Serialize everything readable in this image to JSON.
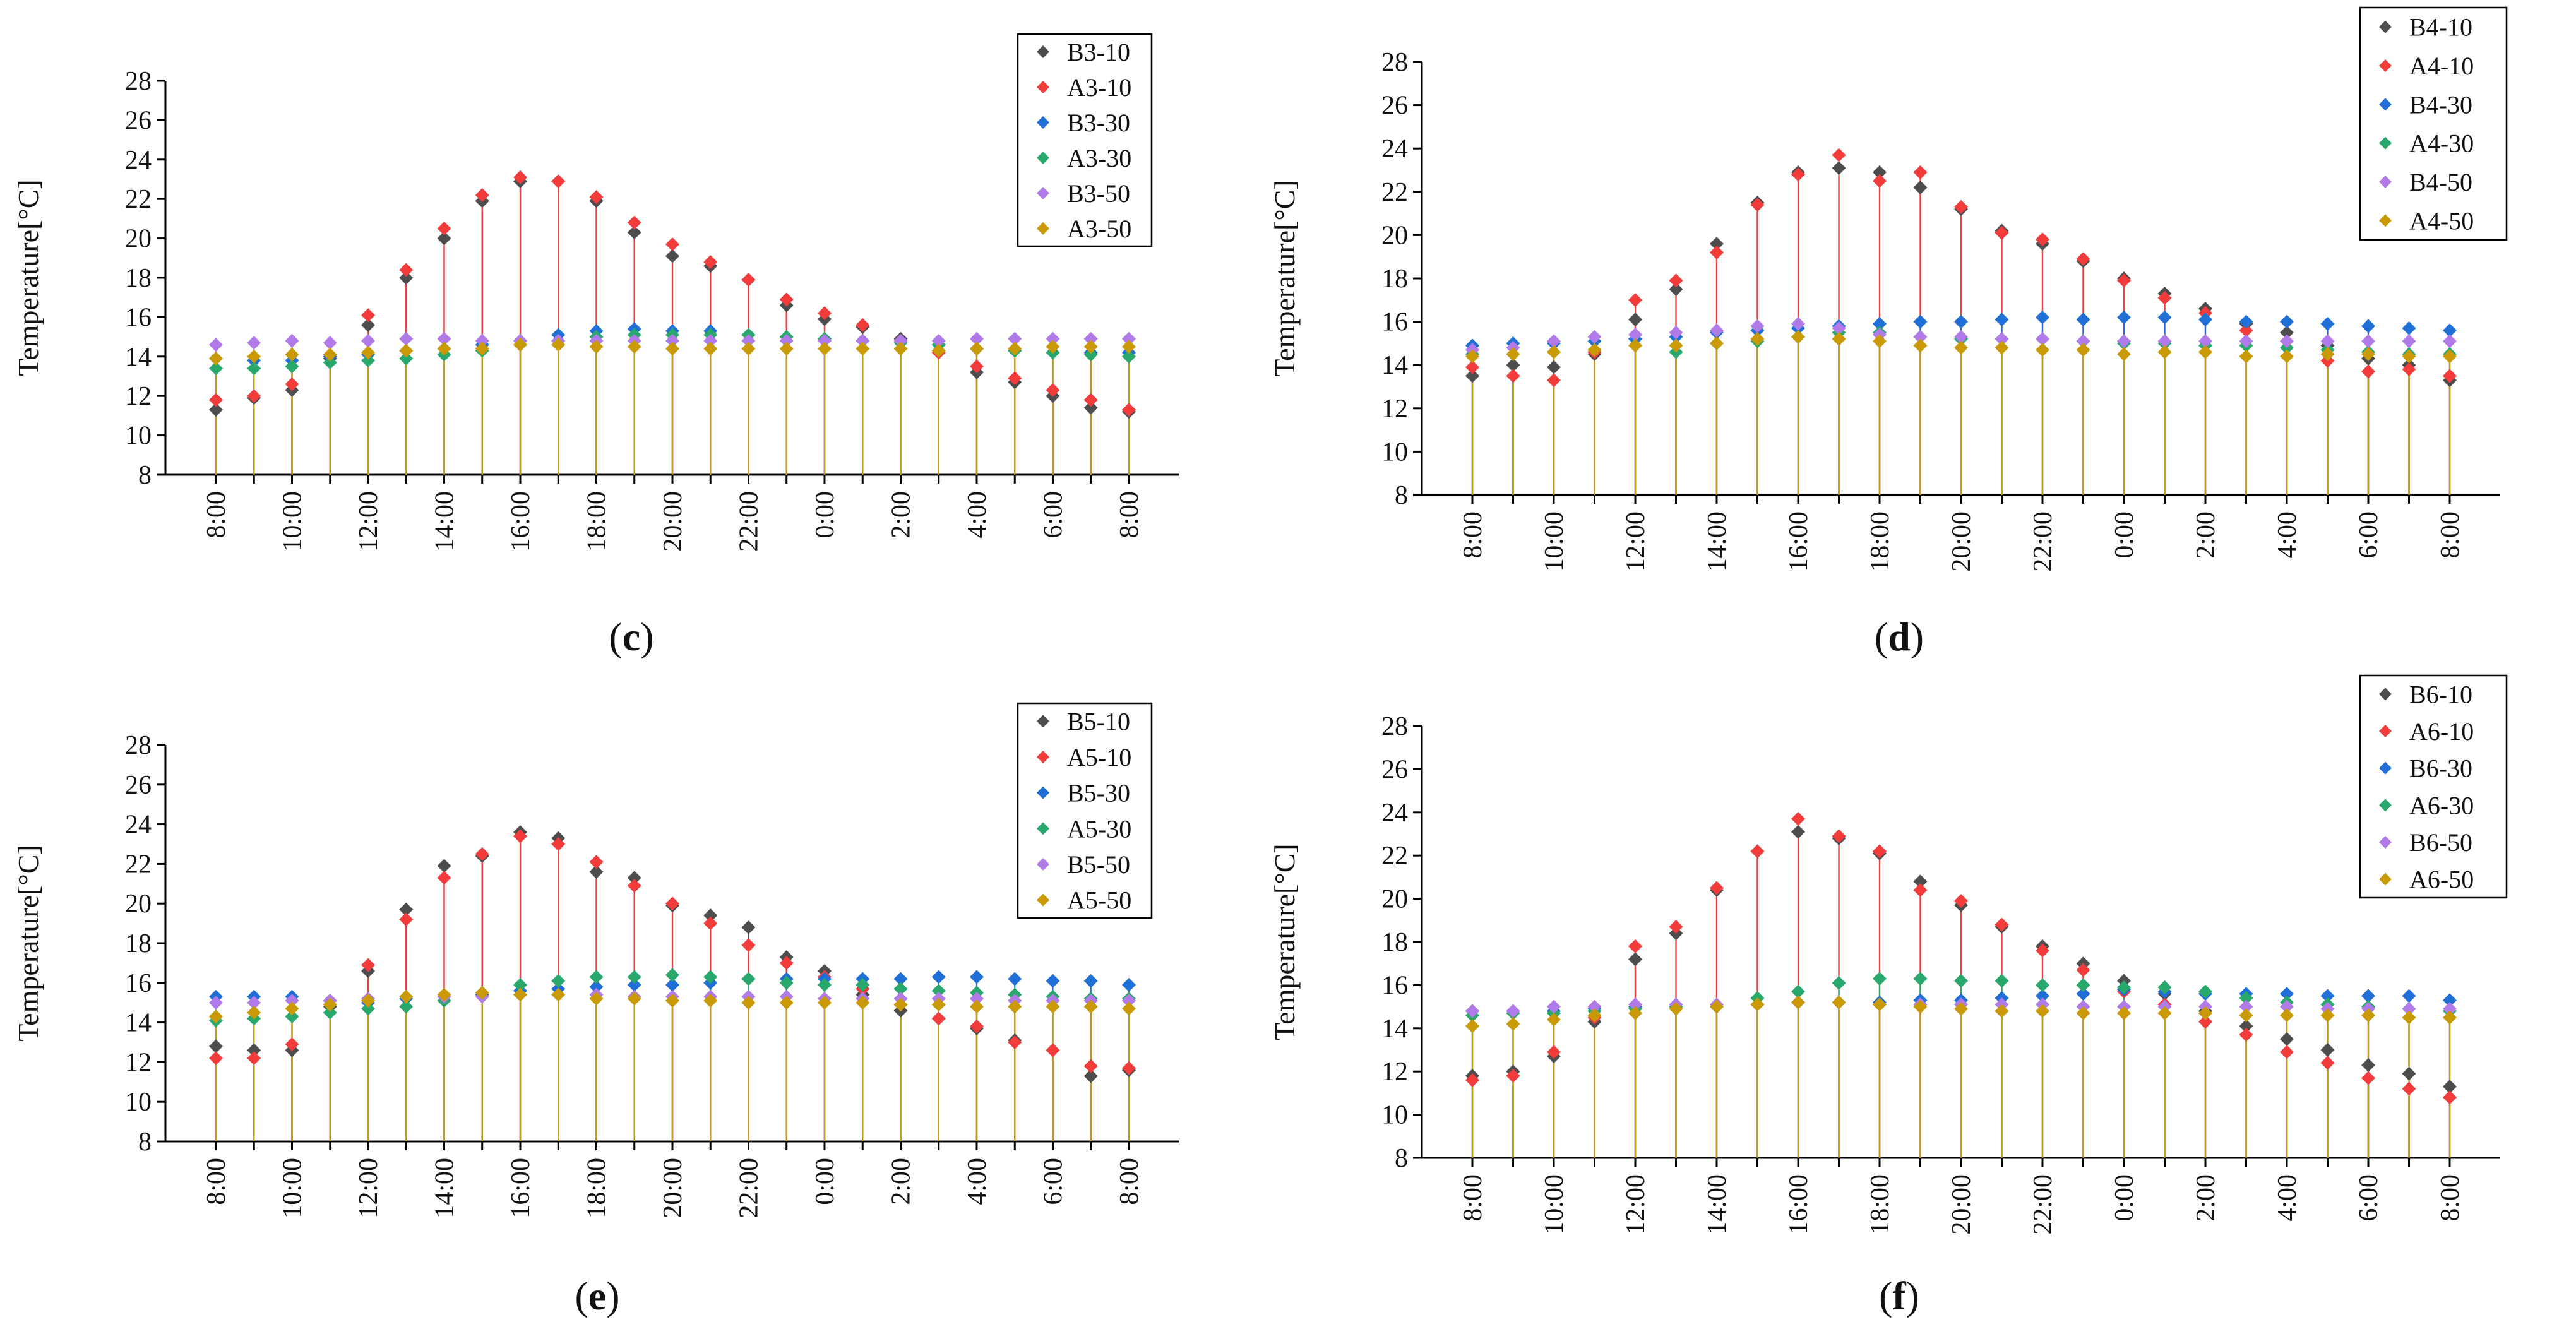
{
  "chart_data": [
    {
      "type": "scatter",
      "panel_label": "c",
      "ylabel": "Temperature[°C]",
      "xlabel": "",
      "categories": [
        "8:00",
        "9:00",
        "10:00",
        "11:00",
        "12:00",
        "13:00",
        "14:00",
        "15:00",
        "16:00",
        "17:00",
        "18:00",
        "19:00",
        "20:00",
        "21:00",
        "22:00",
        "23:00",
        "0:00",
        "1:00",
        "2:00",
        "3:00",
        "4:00",
        "5:00",
        "6:00",
        "7:00",
        "8:00"
      ],
      "tick_labels": [
        "8:00",
        "",
        "10:00",
        "",
        "12:00",
        "",
        "14:00",
        "",
        "16:00",
        "",
        "18:00",
        "",
        "20:00",
        "",
        "22:00",
        "",
        "0:00",
        "",
        "2:00",
        "",
        "4:00",
        "",
        "6:00",
        "",
        "8:00"
      ],
      "yticks": [
        8,
        10,
        12,
        14,
        16,
        18,
        20,
        22,
        24,
        26,
        28
      ],
      "ylim": [
        8,
        28
      ],
      "legend_position": "top-right",
      "series": [
        {
          "name": "B3-10",
          "color": "#4d4d4d",
          "values": [
            11.3,
            11.9,
            12.3,
            13.9,
            15.6,
            18.0,
            20.0,
            21.9,
            22.9,
            22.9,
            21.9,
            20.3,
            19.1,
            18.6,
            17.9,
            16.6,
            15.9,
            15.5,
            14.9,
            14.3,
            13.2,
            12.7,
            12.0,
            11.4,
            11.2
          ]
        },
        {
          "name": "A3-10",
          "color": "#f23b3b",
          "values": [
            11.8,
            12.0,
            12.6,
            14.0,
            16.1,
            18.4,
            20.5,
            22.2,
            23.1,
            22.9,
            22.1,
            20.8,
            19.7,
            18.8,
            17.9,
            16.9,
            16.2,
            15.6,
            14.8,
            14.2,
            13.5,
            12.9,
            12.3,
            11.8,
            11.3
          ]
        },
        {
          "name": "B3-30",
          "color": "#1f6fd6",
          "values": [
            13.9,
            13.8,
            13.8,
            14.0,
            14.1,
            14.3,
            14.4,
            14.6,
            14.8,
            15.1,
            15.3,
            15.4,
            15.3,
            15.3,
            15.1,
            15.0,
            14.9,
            14.8,
            14.7,
            14.6,
            14.4,
            14.3,
            14.2,
            14.2,
            14.2
          ]
        },
        {
          "name": "A3-30",
          "color": "#28a86a",
          "values": [
            13.4,
            13.4,
            13.5,
            13.7,
            13.8,
            13.9,
            14.1,
            14.3,
            14.6,
            14.8,
            15.0,
            15.1,
            15.1,
            15.1,
            15.1,
            15.0,
            14.9,
            14.8,
            14.7,
            14.6,
            14.4,
            14.3,
            14.2,
            14.1,
            14.0
          ]
        },
        {
          "name": "B3-50",
          "color": "#b07be8",
          "values": [
            14.6,
            14.7,
            14.8,
            14.7,
            14.8,
            14.9,
            14.9,
            14.8,
            14.8,
            14.8,
            14.8,
            14.8,
            14.8,
            14.8,
            14.8,
            14.8,
            14.8,
            14.8,
            14.8,
            14.8,
            14.9,
            14.9,
            14.9,
            14.9,
            14.9
          ]
        },
        {
          "name": "A3-50",
          "color": "#c99a06",
          "values": [
            13.9,
            14.0,
            14.1,
            14.1,
            14.2,
            14.3,
            14.4,
            14.4,
            14.6,
            14.6,
            14.5,
            14.5,
            14.4,
            14.4,
            14.4,
            14.4,
            14.4,
            14.4,
            14.4,
            14.3,
            14.4,
            14.4,
            14.5,
            14.5,
            14.5
          ]
        }
      ]
    },
    {
      "type": "scatter",
      "panel_label": "d",
      "ylabel": "Temperature[°C]",
      "xlabel": "",
      "categories": [
        "8:00",
        "9:00",
        "10:00",
        "11:00",
        "12:00",
        "13:00",
        "14:00",
        "15:00",
        "16:00",
        "17:00",
        "18:00",
        "19:00",
        "20:00",
        "21:00",
        "22:00",
        "23:00",
        "0:00",
        "1:00",
        "2:00",
        "3:00",
        "4:00",
        "5:00",
        "6:00",
        "7:00",
        "8:00"
      ],
      "tick_labels": [
        "8:00",
        "",
        "10:00",
        "",
        "12:00",
        "",
        "14:00",
        "",
        "16:00",
        "",
        "18:00",
        "",
        "20:00",
        "",
        "22:00",
        "",
        "0:00",
        "",
        "2:00",
        "",
        "4:00",
        "",
        "6:00",
        "",
        "8:00"
      ],
      "yticks": [
        8,
        10,
        12,
        14,
        16,
        18,
        20,
        22,
        24,
        26,
        28
      ],
      "ylim": [
        8,
        28
      ],
      "legend_position": "top-right",
      "series": [
        {
          "name": "B4-10",
          "color": "#4d4d4d",
          "values": [
            13.5,
            14.0,
            13.9,
            14.5,
            16.1,
            17.5,
            19.6,
            21.5,
            22.9,
            23.1,
            22.9,
            22.2,
            21.2,
            20.2,
            19.6,
            18.8,
            18.0,
            17.3,
            16.6,
            15.9,
            15.5,
            14.9,
            14.3,
            14.0,
            13.3
          ]
        },
        {
          "name": "A4-10",
          "color": "#f23b3b",
          "values": [
            13.9,
            13.5,
            13.3,
            14.6,
            17.0,
            17.9,
            19.2,
            21.4,
            22.8,
            23.7,
            22.5,
            22.9,
            21.3,
            20.1,
            19.8,
            18.9,
            17.9,
            17.1,
            16.4,
            15.6,
            15.1,
            14.2,
            13.7,
            13.8,
            13.5
          ]
        },
        {
          "name": "B4-30",
          "color": "#1f6fd6",
          "values": [
            14.9,
            15.0,
            15.0,
            15.1,
            15.2,
            15.3,
            15.5,
            15.6,
            15.7,
            15.8,
            15.9,
            16.0,
            16.0,
            16.1,
            16.2,
            16.1,
            16.2,
            16.2,
            16.1,
            16.0,
            16.0,
            15.9,
            15.8,
            15.7,
            15.6
          ]
        },
        {
          "name": "A4-30",
          "color": "#28a86a",
          "values": [
            14.5,
            14.5,
            14.6,
            14.7,
            14.9,
            14.6,
            15.0,
            15.1,
            15.3,
            15.5,
            15.5,
            15.3,
            15.2,
            15.2,
            15.2,
            15.1,
            15.0,
            15.0,
            14.9,
            14.9,
            14.8,
            14.7,
            14.6,
            14.5,
            14.5
          ]
        },
        {
          "name": "B4-50",
          "color": "#b07be8",
          "values": [
            14.7,
            14.8,
            15.1,
            15.3,
            15.4,
            15.5,
            15.6,
            15.8,
            15.9,
            15.7,
            15.4,
            15.3,
            15.3,
            15.2,
            15.2,
            15.1,
            15.1,
            15.1,
            15.1,
            15.1,
            15.1,
            15.1,
            15.1,
            15.1,
            15.1
          ]
        },
        {
          "name": "A4-50",
          "color": "#c99a06",
          "values": [
            14.4,
            14.5,
            14.6,
            14.7,
            14.9,
            14.9,
            15.0,
            15.2,
            15.3,
            15.2,
            15.1,
            14.9,
            14.8,
            14.8,
            14.7,
            14.7,
            14.5,
            14.6,
            14.6,
            14.4,
            14.4,
            14.5,
            14.5,
            14.4,
            14.4
          ]
        }
      ]
    },
    {
      "type": "scatter",
      "panel_label": "e",
      "ylabel": "Temperature[°C]",
      "xlabel": "",
      "categories": [
        "8:00",
        "9:00",
        "10:00",
        "11:00",
        "12:00",
        "13:00",
        "14:00",
        "15:00",
        "16:00",
        "17:00",
        "18:00",
        "19:00",
        "20:00",
        "21:00",
        "22:00",
        "23:00",
        "0:00",
        "1:00",
        "2:00",
        "3:00",
        "4:00",
        "5:00",
        "6:00",
        "7:00",
        "8:00"
      ],
      "tick_labels": [
        "8:00",
        "",
        "10:00",
        "",
        "12:00",
        "",
        "14:00",
        "",
        "16:00",
        "",
        "18:00",
        "",
        "20:00",
        "",
        "22:00",
        "",
        "0:00",
        "",
        "2:00",
        "",
        "4:00",
        "",
        "6:00",
        "",
        "8:00"
      ],
      "yticks": [
        8,
        10,
        12,
        14,
        16,
        18,
        20,
        22,
        24,
        26,
        28
      ],
      "ylim": [
        8,
        28
      ],
      "legend_position": "top-right",
      "series": [
        {
          "name": "B5-10",
          "color": "#4d4d4d",
          "values": [
            12.8,
            12.6,
            12.6,
            14.8,
            16.6,
            19.7,
            21.9,
            22.4,
            23.6,
            23.3,
            21.6,
            21.3,
            19.9,
            19.4,
            18.8,
            17.3,
            16.6,
            15.4,
            14.6,
            14.2,
            13.7,
            13.1,
            12.6,
            11.3,
            11.6
          ]
        },
        {
          "name": "A5-10",
          "color": "#f23b3b",
          "values": [
            12.2,
            12.2,
            12.9,
            15.1,
            16.9,
            19.2,
            21.3,
            22.5,
            23.4,
            23.0,
            22.1,
            20.9,
            20.0,
            19.0,
            17.9,
            17.0,
            16.3,
            15.7,
            14.9,
            14.2,
            13.8,
            13.0,
            12.6,
            11.8,
            11.7
          ]
        },
        {
          "name": "B5-30",
          "color": "#1f6fd6",
          "values": [
            15.3,
            15.3,
            15.3,
            15.1,
            15.0,
            15.2,
            15.3,
            15.4,
            15.6,
            15.7,
            15.8,
            15.9,
            15.9,
            16.0,
            16.2,
            16.2,
            16.2,
            16.2,
            16.2,
            16.3,
            16.3,
            16.2,
            16.1,
            16.1,
            15.9
          ]
        },
        {
          "name": "A5-30",
          "color": "#28a86a",
          "values": [
            14.1,
            14.2,
            14.3,
            14.5,
            14.7,
            14.8,
            15.1,
            15.5,
            15.9,
            16.1,
            16.3,
            16.3,
            16.4,
            16.3,
            16.2,
            16.0,
            15.9,
            15.9,
            15.7,
            15.6,
            15.5,
            15.4,
            15.3,
            15.2,
            15.2
          ]
        },
        {
          "name": "B5-50",
          "color": "#b07be8",
          "values": [
            15.0,
            15.0,
            15.1,
            15.1,
            15.2,
            15.3,
            15.3,
            15.3,
            15.4,
            15.4,
            15.4,
            15.3,
            15.3,
            15.3,
            15.3,
            15.3,
            15.2,
            15.2,
            15.2,
            15.2,
            15.2,
            15.1,
            15.1,
            15.1,
            15.1
          ]
        },
        {
          "name": "A5-50",
          "color": "#c99a06",
          "values": [
            14.3,
            14.5,
            14.7,
            14.9,
            15.1,
            15.3,
            15.4,
            15.5,
            15.4,
            15.4,
            15.2,
            15.2,
            15.1,
            15.1,
            15.0,
            15.0,
            15.0,
            15.0,
            14.9,
            14.9,
            14.8,
            14.8,
            14.8,
            14.8,
            14.7
          ]
        }
      ]
    },
    {
      "type": "scatter",
      "panel_label": "f",
      "ylabel": "Temperature[°C]",
      "xlabel": "",
      "categories": [
        "8:00",
        "9:00",
        "10:00",
        "11:00",
        "12:00",
        "13:00",
        "14:00",
        "15:00",
        "16:00",
        "17:00",
        "18:00",
        "19:00",
        "20:00",
        "21:00",
        "22:00",
        "23:00",
        "0:00",
        "1:00",
        "2:00",
        "3:00",
        "4:00",
        "5:00",
        "6:00",
        "7:00",
        "8:00"
      ],
      "tick_labels": [
        "8:00",
        "",
        "10:00",
        "",
        "12:00",
        "",
        "14:00",
        "",
        "16:00",
        "",
        "18:00",
        "",
        "20:00",
        "",
        "22:00",
        "",
        "0:00",
        "",
        "2:00",
        "",
        "4:00",
        "",
        "6:00",
        "",
        "8:00"
      ],
      "yticks": [
        8,
        10,
        12,
        14,
        16,
        18,
        20,
        22,
        24,
        26,
        28
      ],
      "ylim": [
        8,
        28
      ],
      "legend_position": "top-right",
      "series": [
        {
          "name": "B6-10",
          "color": "#4d4d4d",
          "values": [
            11.8,
            12.0,
            12.7,
            14.3,
            17.2,
            18.4,
            20.4,
            22.2,
            23.1,
            22.8,
            22.1,
            20.8,
            19.7,
            18.7,
            17.8,
            17.0,
            16.2,
            15.6,
            14.8,
            14.1,
            13.5,
            13.0,
            12.3,
            11.9,
            11.3
          ]
        },
        {
          "name": "A6-10",
          "color": "#f23b3b",
          "values": [
            11.6,
            11.8,
            12.9,
            14.5,
            17.8,
            18.7,
            20.5,
            22.2,
            23.7,
            22.9,
            22.2,
            20.4,
            19.9,
            18.8,
            17.6,
            16.7,
            15.7,
            15.1,
            14.3,
            13.7,
            12.9,
            12.4,
            11.7,
            11.2,
            10.8
          ]
        },
        {
          "name": "B6-30",
          "color": "#1f6fd6",
          "values": [
            14.8,
            14.8,
            14.8,
            14.9,
            15.0,
            15.0,
            15.0,
            15.1,
            15.2,
            15.2,
            15.2,
            15.3,
            15.3,
            15.4,
            15.5,
            15.6,
            15.8,
            15.7,
            15.6,
            15.6,
            15.6,
            15.5,
            15.5,
            15.5,
            15.3
          ]
        },
        {
          "name": "A6-30",
          "color": "#28a86a",
          "values": [
            14.6,
            14.7,
            14.7,
            14.8,
            14.9,
            15.0,
            15.0,
            15.4,
            15.7,
            16.1,
            16.3,
            16.3,
            16.2,
            16.2,
            16.0,
            16.0,
            15.9,
            15.9,
            15.7,
            15.4,
            15.2,
            15.1,
            15.0,
            14.9,
            14.8
          ]
        },
        {
          "name": "B6-50",
          "color": "#b07be8",
          "values": [
            14.8,
            14.8,
            15.0,
            15.0,
            15.1,
            15.1,
            15.1,
            15.1,
            15.2,
            15.2,
            15.1,
            15.1,
            15.1,
            15.1,
            15.1,
            15.0,
            15.0,
            15.0,
            15.0,
            15.0,
            15.0,
            14.9,
            14.9,
            14.9,
            14.9
          ]
        },
        {
          "name": "A6-50",
          "color": "#c99a06",
          "values": [
            14.1,
            14.2,
            14.4,
            14.6,
            14.7,
            14.9,
            15.0,
            15.1,
            15.2,
            15.2,
            15.1,
            15.0,
            14.9,
            14.8,
            14.8,
            14.7,
            14.7,
            14.7,
            14.7,
            14.6,
            14.6,
            14.6,
            14.6,
            14.5,
            14.5
          ]
        }
      ]
    }
  ]
}
